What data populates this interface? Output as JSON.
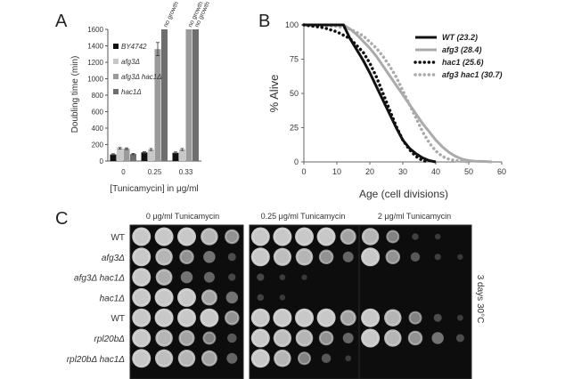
{
  "panels": {
    "a_letter": "A",
    "b_letter": "B",
    "c_letter": "C"
  },
  "chart_data": [
    {
      "panel": "A",
      "type": "bar",
      "categories": [
        "0",
        "0.25",
        "0.33"
      ],
      "xlabel": "[Tunicamycin] in μg/ml",
      "ylabel": "Doubling time (min)",
      "ylim": [
        0,
        1600
      ],
      "yticks": [
        0,
        200,
        400,
        600,
        800,
        1000,
        1200,
        1400,
        1600
      ],
      "grid": false,
      "legend_position": "top-left",
      "series": [
        {
          "name": "BY4742",
          "color": "#111111",
          "values": [
            80,
            105,
            100
          ],
          "errors": [
            8,
            10,
            10
          ],
          "labels": [
            "",
            "",
            ""
          ]
        },
        {
          "name": "afg3Δ",
          "color": "#c8c8c8",
          "values": [
            155,
            140,
            140
          ],
          "errors": [
            10,
            12,
            12
          ],
          "labels": [
            "",
            "",
            ""
          ]
        },
        {
          "name": "afg3Δ hac1Δ",
          "color": "#9a9a9a",
          "values": [
            150,
            1360,
            1600
          ],
          "errors": [
            10,
            80,
            0
          ],
          "labels": [
            "",
            "",
            "no growth"
          ]
        },
        {
          "name": "hac1Δ",
          "color": "#6e6e6e",
          "values": [
            85,
            1600,
            1600
          ],
          "errors": [
            8,
            0,
            0
          ],
          "labels": [
            "",
            "no growth",
            "no growth"
          ]
        }
      ]
    },
    {
      "panel": "B",
      "type": "line",
      "xlabel": "Age (cell divisions)",
      "ylabel": "% Alive",
      "xlim": [
        0,
        60
      ],
      "ylim": [
        0,
        100
      ],
      "xticks": [
        0,
        10,
        20,
        30,
        40,
        50,
        60
      ],
      "yticks": [
        0,
        25,
        50,
        75,
        100
      ],
      "grid": false,
      "legend_position": "top-right",
      "series": [
        {
          "name": "WT (23.2)",
          "color": "#111111",
          "style": "solid",
          "x": [
            0,
            12,
            14,
            16,
            18,
            20,
            22,
            24,
            26,
            28,
            30,
            32,
            34,
            36,
            38,
            40
          ],
          "y": [
            100,
            100,
            90,
            82,
            74,
            65,
            55,
            45,
            35,
            25,
            16,
            10,
            6,
            3,
            1,
            0
          ]
        },
        {
          "name": "afg3 (28.4)",
          "color": "#aaaaaa",
          "style": "solid",
          "x": [
            0,
            12,
            14,
            16,
            18,
            20,
            22,
            24,
            26,
            28,
            30,
            32,
            34,
            36,
            38,
            40,
            42,
            44,
            46,
            48,
            50,
            52,
            55,
            57
          ],
          "y": [
            100,
            100,
            97,
            93,
            88,
            83,
            77,
            70,
            63,
            56,
            49,
            42,
            35,
            28,
            22,
            16,
            11,
            7,
            4,
            2,
            1,
            0.5,
            0.3,
            0
          ]
        },
        {
          "name": "hac1 (25.6)",
          "color": "#111111",
          "style": "dotted",
          "x": [
            0,
            6,
            10,
            14,
            18,
            20,
            22,
            24,
            26,
            28,
            30,
            32,
            34,
            36,
            38
          ],
          "y": [
            100,
            98,
            95,
            90,
            80,
            72,
            62,
            50,
            38,
            26,
            16,
            9,
            4,
            1,
            0
          ]
        },
        {
          "name": "afg3 hac1 (30.7)",
          "color": "#aaaaaa",
          "style": "dotted",
          "x": [
            0,
            10,
            14,
            18,
            22,
            24,
            26,
            28,
            30,
            32,
            34,
            36,
            38,
            40,
            42,
            44,
            46,
            48,
            50
          ],
          "y": [
            100,
            99,
            97,
            92,
            83,
            77,
            70,
            62,
            52,
            42,
            32,
            22,
            14,
            8,
            4,
            2,
            1,
            0.5,
            0
          ]
        }
      ]
    }
  ],
  "panel_c": {
    "conditions": [
      "0 μg/ml Tunicamycin",
      "0.25 μg/ml Tunicamycin",
      "2 μg/ml Tunicamycin"
    ],
    "strains": [
      "WT",
      "afg3Δ",
      "afg3Δ hac1Δ",
      "hac1Δ",
      "WT",
      "rpl20bΔ",
      "rpl20bΔ hac1Δ"
    ],
    "strain_italic": [
      false,
      true,
      true,
      true,
      false,
      true,
      true
    ],
    "side_label": "3 days 30°C",
    "growth_levels": [
      [
        [
          1,
          1,
          1,
          0.9,
          0.7
        ],
        [
          1,
          1,
          1,
          1,
          0.8
        ],
        [
          0.9,
          0.6,
          0.1,
          0.03,
          0
        ]
      ],
      [
        [
          1,
          0.9,
          0.7,
          0.5,
          0.2
        ],
        [
          1,
          0.95,
          0.9,
          0.7,
          0.4
        ],
        [
          1,
          0.7,
          0.3,
          0.08,
          0.02
        ]
      ],
      [
        [
          1,
          0.85,
          0.5,
          0.4,
          0.15
        ],
        [
          0.15,
          0.05,
          0.02,
          0,
          0
        ],
        [
          0,
          0,
          0,
          0,
          0
        ]
      ],
      [
        [
          1,
          1,
          1,
          0.8,
          0.5
        ],
        [
          0.1,
          0.03,
          0,
          0,
          0
        ],
        [
          0,
          0,
          0,
          0,
          0
        ]
      ],
      [
        [
          1,
          1,
          1,
          1,
          0.7
        ],
        [
          1,
          1,
          1,
          1,
          0.8
        ],
        [
          1,
          0.9,
          0.6,
          0.2,
          0.05
        ]
      ],
      [
        [
          1,
          0.9,
          0.8,
          0.6,
          0.3
        ],
        [
          1,
          0.95,
          0.9,
          0.7,
          0.4
        ],
        [
          1,
          0.9,
          0.7,
          0.5,
          0.2
        ]
      ],
      [
        [
          1,
          0.95,
          0.9,
          0.8,
          0.4
        ],
        [
          1,
          0.9,
          0.6,
          0.3,
          0.05
        ],
        [
          0,
          0,
          0,
          0,
          0
        ]
      ]
    ]
  }
}
